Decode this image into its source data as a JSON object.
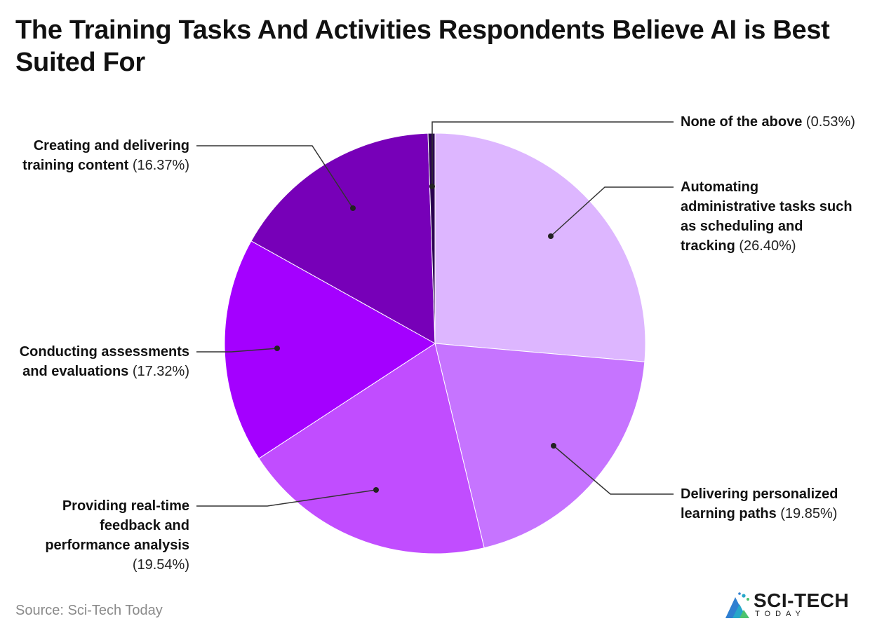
{
  "title": "The Training Tasks And Activities Respondents Believe AI is Best Suited For",
  "source": "Source: Sci-Tech Today",
  "logo": {
    "name": "SCI-TECH",
    "sub": "TODAY"
  },
  "colors": {
    "background": "#ffffff",
    "leader": "#333333",
    "slice_border": "#ffffff"
  },
  "chart_data": {
    "type": "pie",
    "start_angle_deg": 0,
    "direction": "clockwise",
    "slices": [
      {
        "name": "Automating administrative tasks such as scheduling and tracking",
        "label_bold": "Automating administrative tasks such as scheduling and tracking",
        "value": 26.4,
        "value_label": "(26.40%)",
        "color": "#DDB6FF"
      },
      {
        "name": "Delivering personalized learning paths",
        "label_bold": "Delivering personalized learning paths",
        "value": 19.85,
        "value_label": "(19.85%)",
        "color": "#C674FF"
      },
      {
        "name": "Providing real-time feedback and performance analysis",
        "label_bold": "Providing real-time feedback and performance analysis",
        "value": 19.54,
        "value_label": "(19.54%)",
        "color": "#C14DFF"
      },
      {
        "name": "Conducting assessments and evaluations",
        "label_bold": "Conducting assessments and evaluations",
        "value": 17.32,
        "value_label": "(17.32%)",
        "color": "#A400FF"
      },
      {
        "name": "Creating and delivering training content",
        "label_bold": "Creating and delivering training content",
        "value": 16.37,
        "value_label": "(16.37%)",
        "color": "#7700B8"
      },
      {
        "name": "None of the above",
        "label_bold": "None of the above",
        "value": 0.53,
        "value_label": "(0.53%)",
        "color": "#2A0050"
      }
    ]
  }
}
